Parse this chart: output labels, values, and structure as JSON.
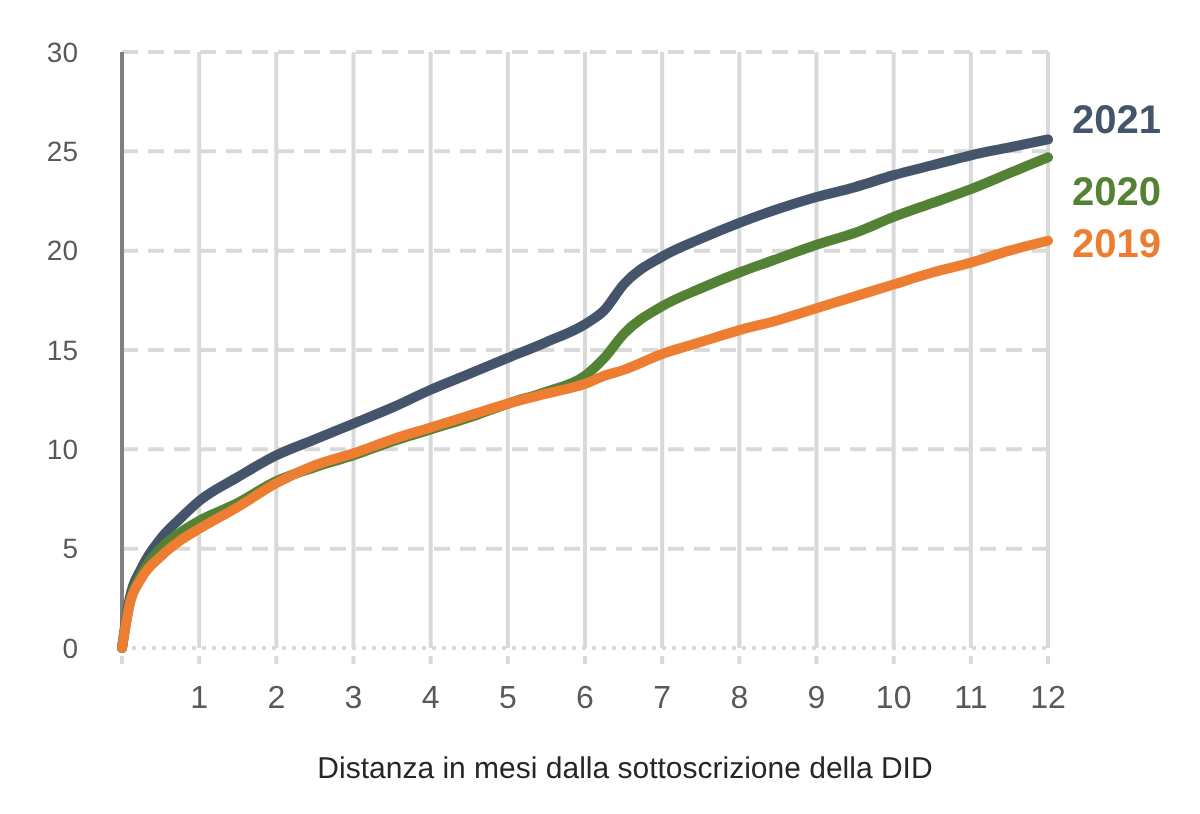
{
  "chart_data": {
    "type": "line",
    "xlabel": "Distanza in mesi dalla sottoscrizione della DID",
    "x": [
      0,
      0.1,
      0.25,
      0.5,
      0.75,
      1,
      1.5,
      2,
      2.5,
      3,
      3.5,
      4,
      4.5,
      5,
      5.5,
      6,
      6.25,
      6.5,
      7,
      7.5,
      8,
      8.5,
      9,
      9.5,
      10,
      10.5,
      11,
      11.5,
      12
    ],
    "series": [
      {
        "name": "2021",
        "color": "#44546a",
        "values": [
          0,
          2.5,
          4,
          5.5,
          6.5,
          7.4,
          8.6,
          9.7,
          10.5,
          11.3,
          12.1,
          13,
          13.8,
          14.6,
          15.4,
          16.3,
          17,
          18.3,
          19.7,
          20.6,
          21.4,
          22.1,
          22.7,
          23.2,
          23.8,
          24.3,
          24.8,
          25.2,
          25.6
        ]
      },
      {
        "name": "2020",
        "color": "#548235",
        "values": [
          0,
          2.3,
          3.7,
          5,
          5.8,
          6.4,
          7.3,
          8.4,
          9.1,
          9.7,
          10.4,
          11,
          11.6,
          12.3,
          12.9,
          13.7,
          14.6,
          15.8,
          17.2,
          18.1,
          18.9,
          19.6,
          20.3,
          20.9,
          21.7,
          22.4,
          23.1,
          23.9,
          24.7
        ]
      },
      {
        "name": "2019",
        "color": "#ed7d31",
        "values": [
          0,
          2.2,
          3.5,
          4.6,
          5.4,
          6,
          7.1,
          8.3,
          9.2,
          9.8,
          10.5,
          11.1,
          11.7,
          12.3,
          12.8,
          13.3,
          13.7,
          14,
          14.8,
          15.4,
          16,
          16.5,
          17.1,
          17.7,
          18.3,
          18.9,
          19.4,
          20,
          20.5
        ]
      }
    ],
    "xlim": [
      0,
      12
    ],
    "xticks": [
      {
        "value": 0,
        "label": null
      },
      1,
      2,
      3,
      4,
      5,
      6,
      7,
      8,
      9,
      10,
      11,
      12
    ],
    "ylim": [
      0,
      30
    ],
    "yticks": [
      0,
      5,
      10,
      15,
      20,
      25,
      30
    ],
    "grid": true,
    "legend": "right",
    "marker": "none",
    "line_style": "solid"
  }
}
